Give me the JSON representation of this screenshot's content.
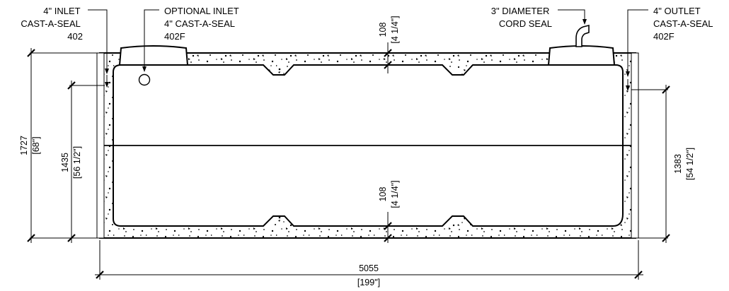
{
  "labels": {
    "inlet_4in": [
      "4\" INLET",
      "CAST-A-SEAL",
      "402"
    ],
    "optional_inlet": [
      "OPTIONAL INLET",
      "4\" CAST-A-SEAL",
      "402F"
    ],
    "cord_seal": [
      "3\" DIAMETER",
      "CORD SEAL"
    ],
    "outlet_4in": [
      "4\" OUTLET",
      "CAST-A-SEAL",
      "402F"
    ]
  },
  "dimensions": {
    "top_slab": {
      "mm": "108",
      "in": "[4 1/4\"]"
    },
    "bottom_slab": {
      "mm": "108",
      "in": "[4 1/4\"]"
    },
    "overall_height": {
      "mm": "1727",
      "in": "[68\"]"
    },
    "inlet_invert": {
      "mm": "1435",
      "in": "[56 1/2\"]"
    },
    "outlet_invert": {
      "mm": "1383",
      "in": "[54 1/2\"]"
    },
    "overall_length": {
      "mm": "5055",
      "in": "[199\"]"
    }
  }
}
